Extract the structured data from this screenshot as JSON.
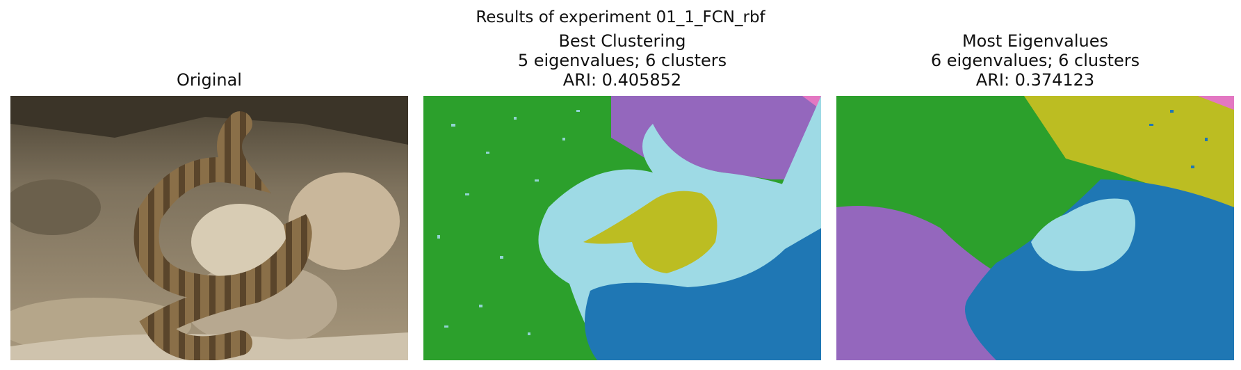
{
  "figure": {
    "suptitle": "Results of experiment 01_1_FCN_rbf"
  },
  "panels": [
    {
      "kind": "original",
      "title_lines": [
        "Original"
      ],
      "image": "photo of a rattlesnake coiled on rocky ground"
    },
    {
      "kind": "segmentation",
      "title_lines": [
        "Best Clustering",
        "5 eigenvalues; 6 clusters",
        "ARI: 0.405852"
      ]
    },
    {
      "kind": "segmentation",
      "title_lines": [
        "Most Eigenvalues",
        "6 eigenvalues; 6 clusters",
        "ARI: 0.374123"
      ]
    }
  ],
  "colors": {
    "green": "#2ca02c",
    "purple": "#9467bd",
    "light_blue": "#9edae5",
    "olive": "#bcbd22",
    "blue": "#1f77b4",
    "pink": "#e377c2"
  }
}
